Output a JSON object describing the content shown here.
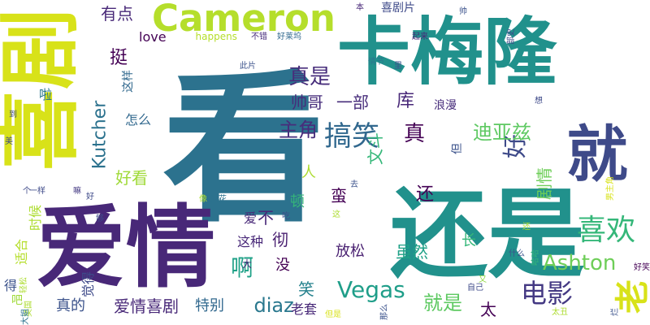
{
  "palette": {
    "background": "#ffffff",
    "yellow": "#d2e21b",
    "lime": "#addc30",
    "green": "#5ec962",
    "bluegreen": "#21918c",
    "teal": "#2c728e",
    "darkteal": "#1f948c",
    "blue": "#3b528b",
    "purple": "#472d7b",
    "darkpurple": "#440154"
  },
  "words": [
    {
      "text": "看",
      "color": "#2c728e",
      "vertical": false
    },
    {
      "text": "还是",
      "color": "#21918c",
      "vertical": false
    },
    {
      "text": "卡梅隆",
      "color": "#21918c",
      "vertical": false
    },
    {
      "text": "爱情",
      "color": "#482878",
      "vertical": false
    },
    {
      "text": "喜剧",
      "color": "#d8e219",
      "vertical": true
    },
    {
      "text": "就",
      "color": "#3e4a89",
      "vertical": false
    },
    {
      "text": "Cameron",
      "color": "#b5de2b",
      "vertical": false
    },
    {
      "text": "老",
      "color": "#d8e219",
      "vertical": true
    },
    {
      "text": "搞笑",
      "color": "#31688e",
      "vertical": false
    },
    {
      "text": "好",
      "color": "#3e4a89",
      "vertical": true
    },
    {
      "text": "喜欢",
      "color": "#35b779",
      "vertical": false
    },
    {
      "text": "电影",
      "color": "#443983",
      "vertical": false
    },
    {
      "text": "Vegas",
      "color": "#1f9e89",
      "vertical": false
    },
    {
      "text": "Ashton",
      "color": "#6ece58",
      "vertical": false
    },
    {
      "text": "Kutcher",
      "color": "#2c728e",
      "vertical": true
    },
    {
      "text": "真是",
      "color": "#472d7b",
      "vertical": false
    },
    {
      "text": "主角",
      "color": "#472d7b",
      "vertical": false
    },
    {
      "text": "迪亚兹",
      "color": "#5ec962",
      "vertical": false
    },
    {
      "text": "真",
      "color": "#440154",
      "vertical": false
    },
    {
      "text": "啊",
      "color": "#1fa187",
      "vertical": false
    },
    {
      "text": "diaz",
      "color": "#2a788e",
      "vertical": false
    },
    {
      "text": "就是",
      "color": "#5ec962",
      "vertical": false
    },
    {
      "text": "有点",
      "color": "#482878",
      "vertical": false
    },
    {
      "text": "挺",
      "color": "#440154",
      "vertical": false
    },
    {
      "text": "好看",
      "color": "#a0da39",
      "vertical": false
    },
    {
      "text": "还",
      "color": "#440154",
      "vertical": false
    },
    {
      "text": "虽然",
      "color": "#1fa187",
      "vertical": false
    },
    {
      "text": "放松",
      "color": "#481f70",
      "vertical": false
    },
    {
      "text": "笑",
      "color": "#26828e",
      "vertical": false
    },
    {
      "text": "太",
      "color": "#440154",
      "vertical": false
    },
    {
      "text": "爱情喜剧",
      "color": "#482878",
      "vertical": false
    },
    {
      "text": "真的",
      "color": "#3b528b",
      "vertical": false
    },
    {
      "text": "库",
      "color": "#482878",
      "vertical": false
    },
    {
      "text": "彻",
      "color": "#481f70",
      "vertical": false
    },
    {
      "text": "不",
      "color": "#482878",
      "vertical": false
    },
    {
      "text": "帅哥",
      "color": "#472d7b",
      "vertical": false
    },
    {
      "text": "一部",
      "color": "#472d7b",
      "vertical": false
    },
    {
      "text": "这种",
      "color": "#482878",
      "vertical": false
    },
    {
      "text": "蛮",
      "color": "#440154",
      "vertical": false
    },
    {
      "text": "剧情",
      "color": "#6ece58",
      "vertical": true
    },
    {
      "text": "特别",
      "color": "#31688e",
      "vertical": false
    },
    {
      "text": "老套",
      "color": "#482878",
      "vertical": false
    },
    {
      "text": "觉得",
      "color": "#3e4a89",
      "vertical": true
    },
    {
      "text": "适合",
      "color": "#b5de2b",
      "vertical": true
    },
    {
      "text": "时候",
      "color": "#addc30",
      "vertical": true
    },
    {
      "text": "这样",
      "color": "#31688e",
      "vertical": true
    },
    {
      "text": "文斗",
      "color": "#35b779",
      "vertical": true
    },
    {
      "text": "但",
      "color": "#3b528b",
      "vertical": true
    },
    {
      "text": "顿",
      "color": "#35b779",
      "vertical": false
    },
    {
      "text": "没",
      "color": "#440154",
      "vertical": false
    },
    {
      "text": "人",
      "color": "#addc30",
      "vertical": false
    },
    {
      "text": "爱",
      "color": "#482878",
      "vertical": false
    },
    {
      "text": "怎么",
      "color": "#31688e",
      "vertical": false
    },
    {
      "text": "长",
      "color": "#35b779",
      "vertical": false
    },
    {
      "text": "love",
      "color": "#440154",
      "vertical": false
    },
    {
      "text": "happens",
      "color": "#b5de2b",
      "vertical": false
    },
    {
      "text": "啦",
      "color": "#2a788e",
      "vertical": false
    },
    {
      "text": "得",
      "color": "#3b528b",
      "vertical": false
    },
    {
      "text": "吧",
      "color": "#a0da39",
      "vertical": false
    },
    {
      "text": "大",
      "color": "#482878",
      "vertical": false
    },
    {
      "text": "浪漫",
      "color": "#472d7b",
      "vertical": false
    },
    {
      "text": "喜剧片",
      "color": "#3e4a89",
      "vertical": false
    },
    {
      "text": "不错",
      "color": "#472d7b",
      "vertical": false
    },
    {
      "text": "好莱坞",
      "color": "#31688e",
      "vertical": false
    },
    {
      "text": "起来",
      "color": "#482878",
      "vertical": false
    },
    {
      "text": "本",
      "color": "#482878",
      "vertical": false
    },
    {
      "text": "帅",
      "color": "#3b528b",
      "vertical": false
    },
    {
      "text": "此片",
      "color": "#3b528b",
      "vertical": false
    },
    {
      "text": "情节",
      "color": "#2a788e",
      "vertical": false
    },
    {
      "text": "里",
      "color": "#3b528b",
      "vertical": false
    },
    {
      "text": "部史",
      "color": "#3e4a89",
      "vertical": true
    },
    {
      "text": "一样",
      "color": "#3e4a89",
      "vertical": false
    },
    {
      "text": "嘛",
      "color": "#443983",
      "vertical": false
    },
    {
      "text": "爆米花",
      "color": "#2c728e",
      "vertical": false
    },
    {
      "text": "像",
      "color": "#addc30",
      "vertical": false
    },
    {
      "text": "去",
      "color": "#3b528b",
      "vertical": false
    },
    {
      "text": "什么",
      "color": "#3b528b",
      "vertical": false
    },
    {
      "text": "又",
      "color": "#8fd744",
      "vertical": false
    },
    {
      "text": "自己",
      "color": "#3e4a89",
      "vertical": false
    },
    {
      "text": "哈哈",
      "color": "#35b779",
      "vertical": true
    },
    {
      "text": "那么",
      "color": "#3b528b",
      "vertical": true
    },
    {
      "text": "但是",
      "color": "#d8e219",
      "vertical": false
    },
    {
      "text": "烂",
      "color": "#3b528b",
      "vertical": true
    },
    {
      "text": "好笑",
      "color": "#440154",
      "vertical": false
    },
    {
      "text": "男主角",
      "color": "#d8e219",
      "vertical": true
    },
    {
      "text": "轻松",
      "color": "#addc30",
      "vertical": true
    },
    {
      "text": "美国",
      "color": "#addc30",
      "vertical": true
    },
    {
      "text": "大姐",
      "color": "#2c728e",
      "vertical": true
    },
    {
      "text": "到",
      "color": "#3e4a89",
      "vertical": false
    },
    {
      "text": "美",
      "color": "#3e4a89",
      "vertical": false
    },
    {
      "text": "个",
      "color": "#3e4a89",
      "vertical": false
    },
    {
      "text": "够",
      "color": "#3e4a89",
      "vertical": false
    },
    {
      "text": "好",
      "color": "#3e4a89",
      "vertical": false
    },
    {
      "text": "想",
      "color": "#3e4a89",
      "vertical": false
    },
    {
      "text": "吃",
      "color": "#3e4a89",
      "vertical": false
    },
    {
      "text": "太丑",
      "color": "#addc30",
      "vertical": false
    },
    {
      "text": "这",
      "color": "#addc30",
      "vertical": false
    },
    {
      "text": "还",
      "color": "#addc30",
      "vertical": false
    }
  ]
}
